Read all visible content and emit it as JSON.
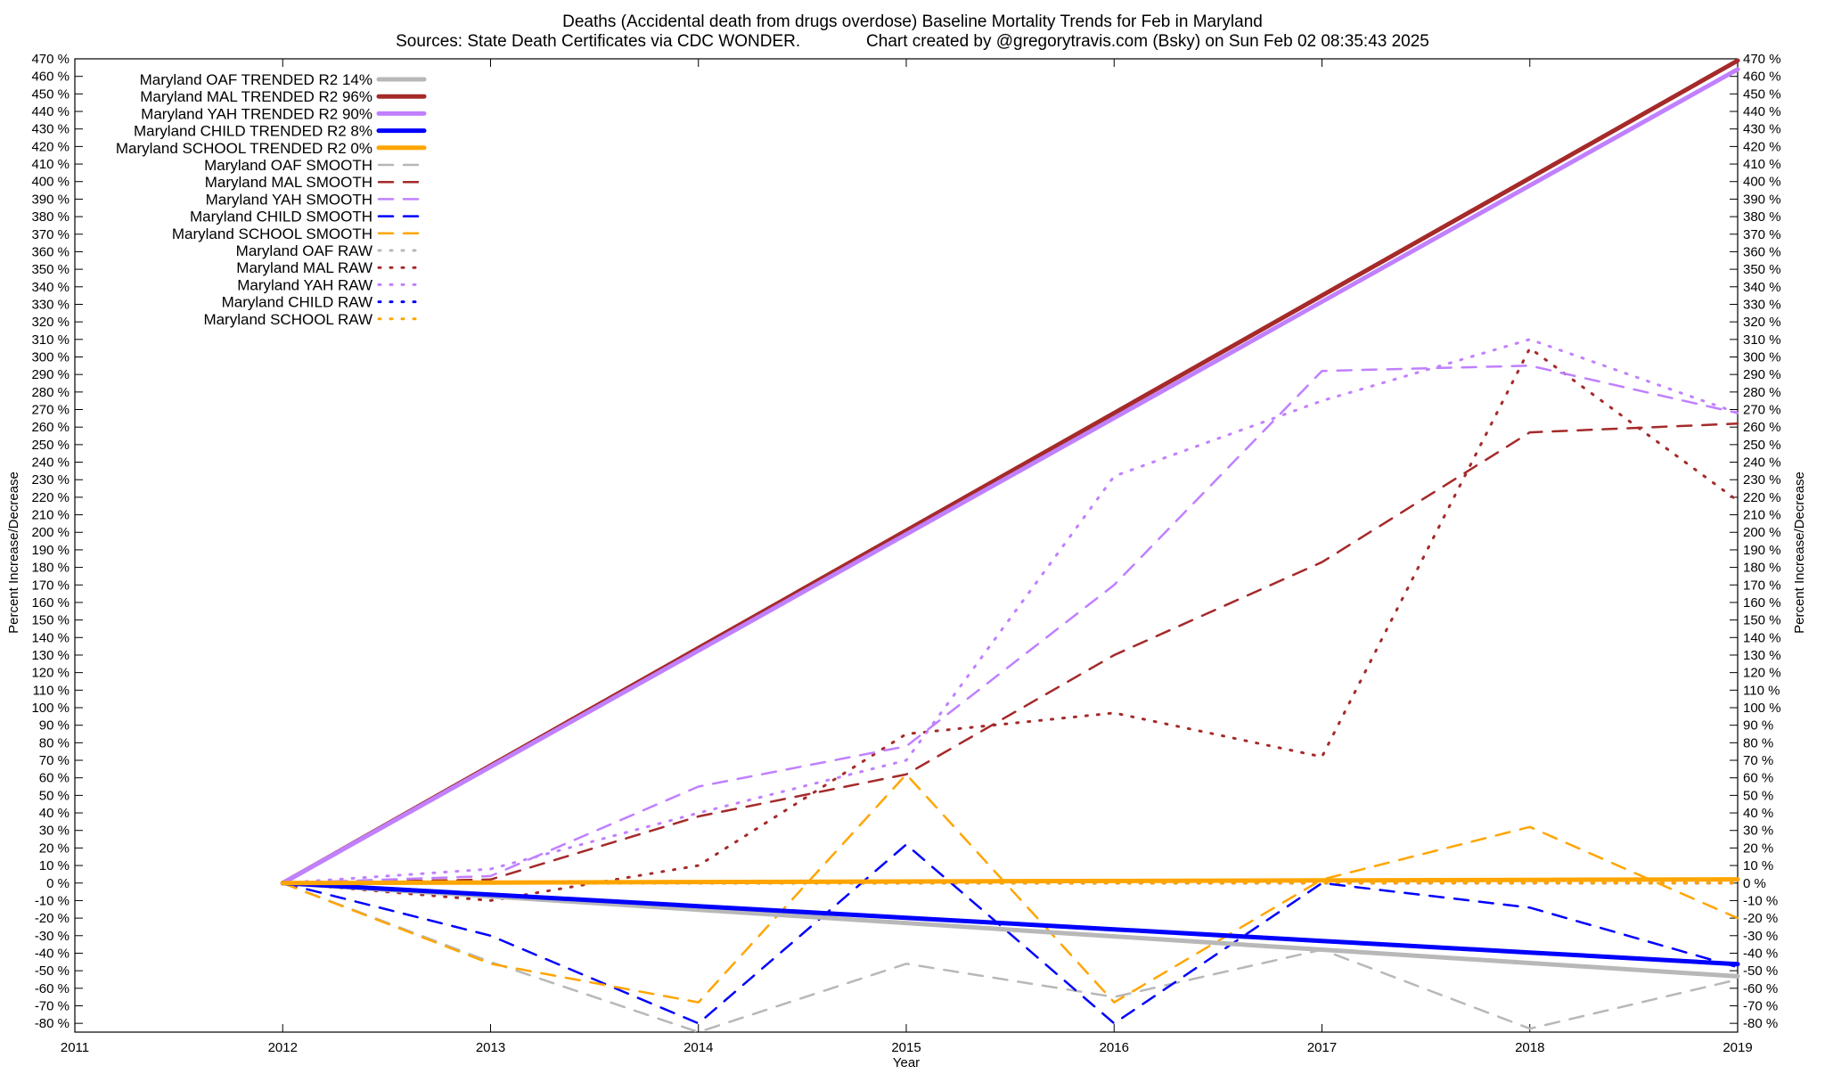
{
  "chart_data": {
    "type": "line",
    "title": "Deaths (Accidental death from drugs overdose)  Baseline Mortality Trends for Feb in Maryland",
    "subtitle": "Sources: State Death Certificates via CDC WONDER.              Chart created by @gregorytravis.com (Bsky) on Sun Feb 02 08:35:43 2025",
    "xlabel": "Year",
    "ylabel": "Percent Increase/Decrease",
    "y2label": "Percent Increase/Decrease",
    "xlim": [
      2011,
      2019
    ],
    "ylim": [
      -85,
      470
    ],
    "xticks": [
      2011,
      2012,
      2013,
      2014,
      2015,
      2016,
      2017,
      2018,
      2019
    ],
    "yticks": [
      -80,
      -70,
      -60,
      -50,
      -40,
      -30,
      -20,
      -10,
      0,
      10,
      20,
      30,
      40,
      50,
      60,
      70,
      80,
      90,
      100,
      110,
      120,
      130,
      140,
      150,
      160,
      170,
      180,
      190,
      200,
      210,
      220,
      230,
      240,
      250,
      260,
      270,
      280,
      290,
      300,
      310,
      320,
      330,
      340,
      350,
      360,
      370,
      380,
      390,
      400,
      410,
      420,
      430,
      440,
      450,
      460,
      470
    ],
    "tick_suffix": " %",
    "grid": false,
    "legend_position": "top-left",
    "series": [
      {
        "name": "Maryland OAF TRENDED R2  14%",
        "style": "solid",
        "color": "#b8b8b8",
        "x": [
          2012,
          2013,
          2014,
          2015,
          2016,
          2017,
          2018,
          2019
        ],
        "y": [
          0,
          -7.6,
          -15.2,
          -22.8,
          -30.4,
          -38,
          -45.6,
          -53.2
        ]
      },
      {
        "name": "Maryland MAL TRENDED R2  96%",
        "style": "solid",
        "color": "#a52a2a",
        "x": [
          2012,
          2013,
          2014,
          2015,
          2016,
          2017,
          2018,
          2019
        ],
        "y": [
          0,
          67,
          134,
          201,
          268,
          335,
          402,
          469
        ]
      },
      {
        "name": "Maryland YAH TRENDED R2  90%",
        "style": "solid",
        "color": "#c080ff",
        "x": [
          2012,
          2013,
          2014,
          2015,
          2016,
          2017,
          2018,
          2019
        ],
        "y": [
          0,
          66.3,
          132.6,
          198.9,
          265.2,
          331.5,
          397.8,
          464
        ]
      },
      {
        "name": "Maryland CHILD TRENDED R2  8%",
        "style": "solid",
        "color": "#0000ff",
        "x": [
          2012,
          2013,
          2014,
          2015,
          2016,
          2017,
          2018,
          2019
        ],
        "y": [
          0,
          -6.6,
          -13.2,
          -19.8,
          -26.4,
          -33,
          -39.6,
          -46.2
        ]
      },
      {
        "name": "Maryland SCHOOL TRENDED R2   0%",
        "style": "solid",
        "color": "#ffa500",
        "x": [
          2012,
          2013,
          2014,
          2015,
          2016,
          2017,
          2018,
          2019
        ],
        "y": [
          0,
          0.3,
          0.6,
          0.9,
          1.2,
          1.5,
          1.8,
          2.1
        ]
      },
      {
        "name": "Maryland OAF SMOOTH",
        "style": "dashed",
        "color": "#b8b8b8",
        "x": [
          2012,
          2013,
          2014,
          2015,
          2016,
          2017,
          2018,
          2019
        ],
        "y": [
          0,
          -45,
          -85,
          -46,
          -65,
          -38,
          -83,
          -55
        ]
      },
      {
        "name": "Maryland MAL SMOOTH",
        "style": "dashed",
        "color": "#a52a2a",
        "x": [
          2012,
          2013,
          2014,
          2015,
          2016,
          2017,
          2018,
          2019
        ],
        "y": [
          0,
          2,
          38,
          62,
          130,
          183,
          257,
          262
        ]
      },
      {
        "name": "Maryland YAH SMOOTH",
        "style": "dashed",
        "color": "#c080ff",
        "x": [
          2012,
          2013,
          2014,
          2015,
          2016,
          2017,
          2018,
          2019
        ],
        "y": [
          0,
          4,
          55,
          78,
          170,
          292,
          295,
          268
        ]
      },
      {
        "name": "Maryland CHILD SMOOTH",
        "style": "dashed",
        "color": "#0000ff",
        "x": [
          2012,
          2013,
          2014,
          2015,
          2016,
          2017,
          2018,
          2019
        ],
        "y": [
          0,
          -30,
          -80,
          22,
          -80,
          0,
          -14,
          -48
        ]
      },
      {
        "name": "Maryland SCHOOL SMOOTH",
        "style": "dashed",
        "color": "#ffa500",
        "x": [
          2012,
          2013,
          2014,
          2015,
          2016,
          2017,
          2018,
          2019
        ],
        "y": [
          0,
          -46,
          -68,
          62,
          -68,
          2,
          32,
          -20
        ]
      },
      {
        "name": "Maryland OAF RAW",
        "style": "dotted",
        "color": "#b8b8b8",
        "x": [
          2012,
          2013,
          2014,
          2015,
          2016,
          2017,
          2018,
          2019
        ],
        "y": [
          0,
          0,
          0,
          0,
          0,
          0,
          0,
          0
        ]
      },
      {
        "name": "Maryland MAL RAW",
        "style": "dotted",
        "color": "#a52a2a",
        "x": [
          2012,
          2013,
          2014,
          2015,
          2016,
          2017,
          2018,
          2019
        ],
        "y": [
          0,
          -10,
          10,
          85,
          97,
          72,
          305,
          218
        ]
      },
      {
        "name": "Maryland YAH RAW",
        "style": "dotted",
        "color": "#c080ff",
        "x": [
          2012,
          2013,
          2014,
          2015,
          2016,
          2017,
          2018,
          2019
        ],
        "y": [
          0,
          8,
          40,
          70,
          232,
          275,
          310,
          268
        ]
      },
      {
        "name": "Maryland CHILD RAW",
        "style": "dotted",
        "color": "#0000ff",
        "x": [
          2012,
          2013,
          2014,
          2015,
          2016,
          2017,
          2018,
          2019
        ],
        "y": [
          0,
          0,
          0,
          0,
          0,
          0,
          0,
          0
        ]
      },
      {
        "name": "Maryland SCHOOL RAW",
        "style": "dotted",
        "color": "#ffa500",
        "x": [
          2012,
          2013,
          2014,
          2015,
          2016,
          2017,
          2018,
          2019
        ],
        "y": [
          0,
          0,
          0,
          0,
          0,
          0,
          0,
          0
        ]
      }
    ]
  }
}
